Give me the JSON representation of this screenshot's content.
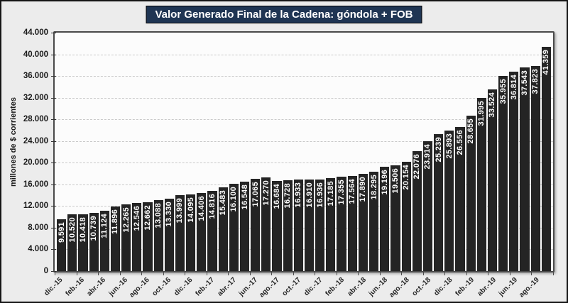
{
  "chart_data": {
    "type": "bar",
    "title": "Valor Generado Final de la Cadena: góndola + FOB",
    "ylabel": "millones de $ corrientes",
    "xlabel": "",
    "ylim": [
      0,
      44000
    ],
    "ytick_step": 4000,
    "ytick_labels": [
      "0",
      "4.000",
      "8.000",
      "12.000",
      "16.000",
      "20.000",
      "24.000",
      "28.000",
      "32.000",
      "36.000",
      "40.000",
      "44.000"
    ],
    "grid": "dashed-horizontal",
    "legend": "none",
    "n_bars": 46,
    "x_tick_every": 2,
    "x_tick_labels": [
      "dic.-15",
      "feb.-16",
      "abr.-16",
      "jun.-16",
      "ago.-16",
      "oct.-16",
      "dic.-16",
      "feb.-17",
      "abr.-17",
      "jun.-17",
      "ago.-17",
      "oct.-17",
      "dic.-17",
      "feb.-18",
      "abr.-18",
      "jun.-18",
      "ago.-18",
      "oct.-18",
      "dic.-18",
      "feb.-19",
      "abr.-19",
      "jun.-19",
      "ago.-19"
    ],
    "bars": [
      {
        "label": "9.591",
        "value": 9591
      },
      {
        "label": "10.520",
        "value": 10520
      },
      {
        "label": "10.418",
        "value": 10418
      },
      {
        "label": "10.739",
        "value": 10739
      },
      {
        "label": "11.124",
        "value": 11124
      },
      {
        "label": "11.896",
        "value": 11896
      },
      {
        "label": "12.265",
        "value": 12265
      },
      {
        "label": "12.546",
        "value": 12546
      },
      {
        "label": "12.662",
        "value": 12662
      },
      {
        "label": "13.088",
        "value": 13088
      },
      {
        "label": "13.330",
        "value": 13330
      },
      {
        "label": "13.999",
        "value": 13999
      },
      {
        "label": "14.095",
        "value": 14095
      },
      {
        "label": "14.406",
        "value": 14406
      },
      {
        "label": "14.816",
        "value": 14816
      },
      {
        "label": "15.483",
        "value": 15483
      },
      {
        "label": "16.100",
        "value": 16100
      },
      {
        "label": "16.548",
        "value": 16548
      },
      {
        "label": "17.065",
        "value": 17065
      },
      {
        "label": "17.270",
        "value": 17270
      },
      {
        "label": "16.684",
        "value": 16684
      },
      {
        "label": "16.728",
        "value": 16728
      },
      {
        "label": "16.933",
        "value": 16933
      },
      {
        "label": "16.910",
        "value": 16910
      },
      {
        "label": "16.936",
        "value": 16936
      },
      {
        "label": "17.185",
        "value": 17185
      },
      {
        "label": "17.355",
        "value": 17355
      },
      {
        "label": "17.564",
        "value": 17564
      },
      {
        "label": "17.890",
        "value": 17890
      },
      {
        "label": "18.295",
        "value": 18295
      },
      {
        "label": "19.196",
        "value": 19196
      },
      {
        "label": "19.506",
        "value": 19506
      },
      {
        "label": "20.154",
        "value": 20154
      },
      {
        "label": "22.076",
        "value": 22076
      },
      {
        "label": "23.914",
        "value": 23914
      },
      {
        "label": "25.239",
        "value": 25239
      },
      {
        "label": "25.893",
        "value": 25893
      },
      {
        "label": "26.556",
        "value": 26556
      },
      {
        "label": "28.655",
        "value": 28655
      },
      {
        "label": "31.995",
        "value": 31995
      },
      {
        "label": "33.524",
        "value": 33524
      },
      {
        "label": "35.955",
        "value": 35955
      },
      {
        "label": "36.814",
        "value": 36814
      },
      {
        "label": "37.543",
        "value": 37543
      },
      {
        "label": "37.823",
        "value": 37823
      },
      {
        "label": "41.359",
        "value": 41359
      }
    ],
    "colors": {
      "title_bg": "#1F3553",
      "title_text": "#FFFFFF",
      "bar": "#242424",
      "bar_label": "#FFFFFF",
      "figure_bg": "#ECECEC",
      "plot_bg": "#FCFCFC",
      "gridline": "#C9C9C9",
      "axis_text": "#1A1A1A"
    }
  }
}
